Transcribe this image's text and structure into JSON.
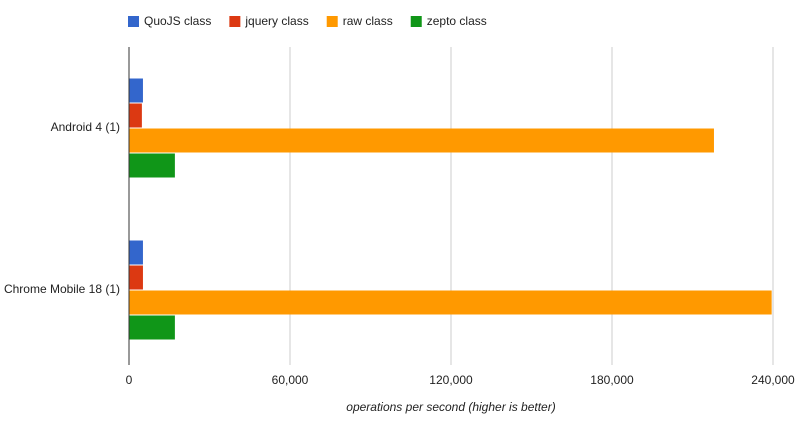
{
  "chart_data": {
    "type": "bar",
    "orientation": "horizontal",
    "x_label": "operations per second (higher is better)",
    "categories": [
      "Android 4 (1)",
      "Chrome Mobile 18 (1)"
    ],
    "series": [
      {
        "name": "QuoJS class",
        "color": "#3366cc",
        "values": [
          5200,
          5200
        ]
      },
      {
        "name": "jquery class",
        "color": "#dc3912",
        "values": [
          4800,
          5200
        ]
      },
      {
        "name": "raw class",
        "color": "#ff9900",
        "values": [
          218000,
          239500
        ]
      },
      {
        "name": "zepto class",
        "color": "#109618",
        "values": [
          17100,
          17100
        ]
      }
    ],
    "xlim": [
      0,
      240000
    ],
    "xticks": [
      0,
      {
        "value": 60000,
        "label": "60,000"
      },
      {
        "value": 120000,
        "label": "120,000"
      },
      {
        "value": 180000,
        "label": "180,000"
      },
      {
        "value": 240000,
        "label": "240,000"
      }
    ],
    "grid": true,
    "legend": "top"
  }
}
